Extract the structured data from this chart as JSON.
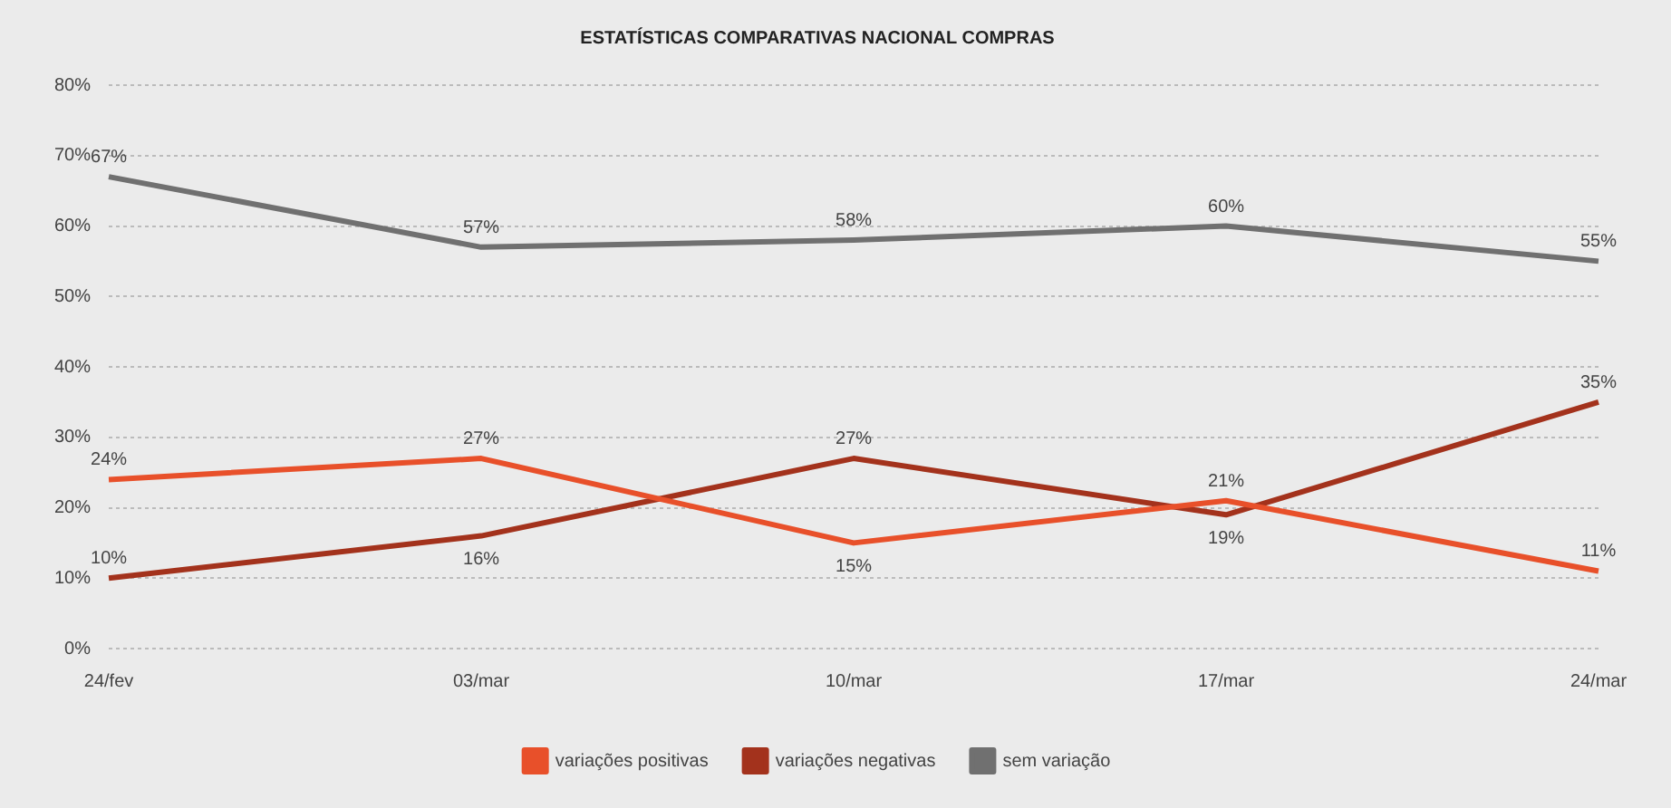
{
  "chart_data": {
    "type": "line",
    "title": "ESTATÍSTICAS COMPARATIVAS NACIONAL COMPRAS",
    "categories": [
      "24/fev",
      "03/mar",
      "10/mar",
      "17/mar",
      "24/mar"
    ],
    "series": [
      {
        "name": "variações positivas",
        "color": "#e8502a",
        "values": [
          24,
          27,
          15,
          21,
          11
        ],
        "value_labels": [
          "24%",
          "27%",
          "15%",
          "21%",
          "11%"
        ]
      },
      {
        "name": "variações negativas",
        "color": "#a3321c",
        "values": [
          10,
          16,
          27,
          19,
          35
        ],
        "value_labels": [
          "10%",
          "16%",
          "27%",
          "19%",
          "35%"
        ]
      },
      {
        "name": "sem variação",
        "color": "#707070",
        "values": [
          67,
          57,
          58,
          60,
          55
        ],
        "value_labels": [
          "67%",
          "57%",
          "58%",
          "60%",
          "55%"
        ]
      }
    ],
    "ylim": [
      0,
      80
    ],
    "yticks": [
      {
        "value": 0,
        "label": "0%"
      },
      {
        "value": 10,
        "label": "10%"
      },
      {
        "value": 20,
        "label": "20%"
      },
      {
        "value": 30,
        "label": "30%"
      },
      {
        "value": 40,
        "label": "40%"
      },
      {
        "value": 50,
        "label": "50%"
      },
      {
        "value": 60,
        "label": "60%"
      },
      {
        "value": 70,
        "label": "70%"
      },
      {
        "value": 80,
        "label": "80%"
      }
    ],
    "grid": "y",
    "legend": "bottom",
    "marker": "none",
    "line_style": "solid"
  }
}
